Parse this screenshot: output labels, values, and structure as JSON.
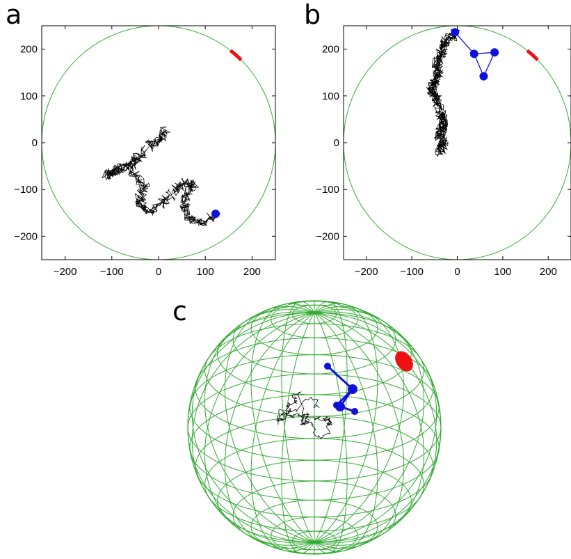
{
  "panel_labels": {
    "a": "a",
    "b": "b",
    "c": "c"
  },
  "colors": {
    "sphere": "#33aa33",
    "walk": "#000000",
    "particle": "#1010dd",
    "target": "#ee1111",
    "axes": "#000000"
  },
  "chart_data": [
    {
      "panel": "a",
      "type": "line",
      "title": "",
      "xlabel": "",
      "ylabel": "",
      "xlim": [
        -250,
        250
      ],
      "ylim": [
        -250,
        250
      ],
      "xticks": [
        -200,
        -100,
        0,
        100,
        200
      ],
      "yticks": [
        -200,
        -100,
        0,
        100,
        200
      ],
      "xtick_labels": [
        "−200",
        "−100",
        "0",
        "100",
        "200"
      ],
      "ytick_labels": [
        "−200",
        "−100",
        "0",
        "100",
        "200"
      ],
      "grid": false,
      "boundary_circle": {
        "center": [
          0,
          0
        ],
        "radius": 250
      },
      "target_arc_degrees": [
        45,
        52
      ],
      "random_walk": {
        "start": [
          15,
          25
        ],
        "end": [
          122,
          -152
        ],
        "points": 650,
        "seed": 7
      },
      "walk_path": [
        [
          15,
          25
        ],
        [
          5,
          5
        ],
        [
          -20,
          -5
        ],
        [
          -40,
          -30
        ],
        [
          -55,
          -45
        ],
        [
          -85,
          -55
        ],
        [
          -110,
          -70
        ],
        [
          -95,
          -60
        ],
        [
          -70,
          -50
        ],
        [
          -45,
          -75
        ],
        [
          -30,
          -95
        ],
        [
          -40,
          -120
        ],
        [
          -35,
          -140
        ],
        [
          -10,
          -145
        ],
        [
          10,
          -125
        ],
        [
          40,
          -100
        ],
        [
          55,
          -85
        ],
        [
          75,
          -90
        ],
        [
          60,
          -115
        ],
        [
          55,
          -140
        ],
        [
          70,
          -165
        ],
        [
          95,
          -175
        ],
        [
          122,
          -152
        ]
      ],
      "particles": [
        {
          "x": 122,
          "y": -152
        }
      ]
    },
    {
      "panel": "b",
      "type": "line",
      "title": "",
      "xlabel": "",
      "ylabel": "",
      "xlim": [
        -250,
        250
      ],
      "ylim": [
        -250,
        250
      ],
      "xticks": [
        -200,
        -100,
        0,
        100,
        200
      ],
      "yticks": [
        -200,
        -100,
        0,
        100,
        200
      ],
      "xtick_labels": [
        "−200",
        "−100",
        "0",
        "100",
        "200"
      ],
      "ytick_labels": [
        "−200",
        "−100",
        "0",
        "100",
        "200"
      ],
      "grid": false,
      "boundary_circle": {
        "center": [
          0,
          0
        ],
        "radius": 250
      },
      "target_arc_degrees": [
        45,
        52
      ],
      "random_walk": {
        "start": [
          -40,
          -20
        ],
        "end": [
          -5,
          235
        ],
        "points": 600,
        "seed": 11
      },
      "walk_path": [
        [
          -40,
          -20
        ],
        [
          -30,
          0
        ],
        [
          -40,
          20
        ],
        [
          -30,
          40
        ],
        [
          -35,
          60
        ],
        [
          -45,
          90
        ],
        [
          -60,
          110
        ],
        [
          -50,
          130
        ],
        [
          -40,
          150
        ],
        [
          -45,
          170
        ],
        [
          -35,
          195
        ],
        [
          -25,
          215
        ],
        [
          -5,
          235
        ]
      ],
      "particles": [
        {
          "x": -5,
          "y": 236
        },
        {
          "x": 37,
          "y": 190
        },
        {
          "x": 82,
          "y": 193
        },
        {
          "x": 58,
          "y": 142
        }
      ],
      "particle_links": [
        [
          0,
          1
        ],
        [
          1,
          2
        ],
        [
          2,
          3
        ],
        [
          3,
          1
        ]
      ]
    },
    {
      "panel": "c",
      "type": "other",
      "title": "",
      "xlabel": "",
      "ylabel": "",
      "description_kind": "wireframe-sphere",
      "latitude_lines": 18,
      "longitude_lines": 24,
      "grid": false
    }
  ]
}
